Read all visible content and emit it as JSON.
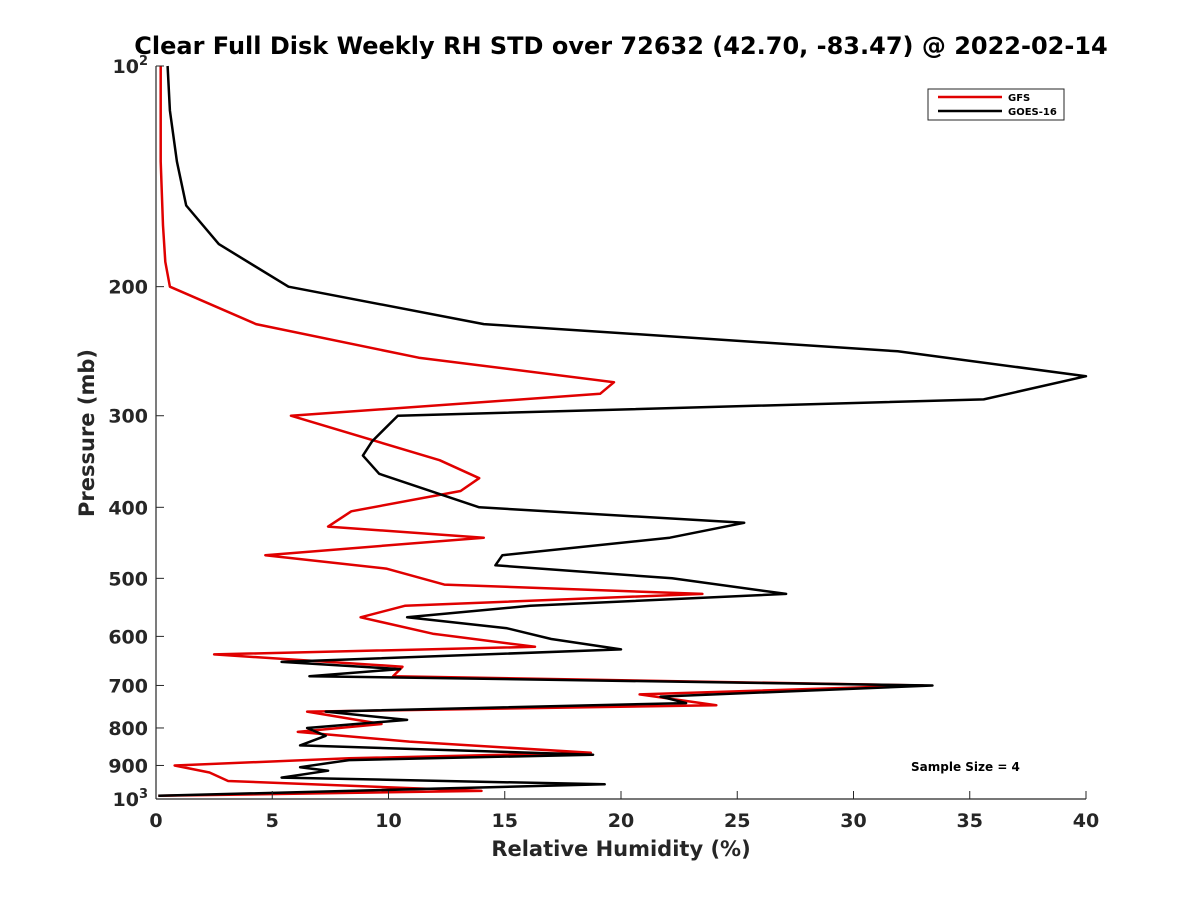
{
  "chart_data": {
    "type": "line",
    "title": "Clear Full Disk Weekly RH STD over 72632 (42.70, -83.47) @ 2022-02-14",
    "xlabel": "Relative Humidity (%)",
    "ylabel": "Pressure (mb)",
    "xlim": [
      0,
      40
    ],
    "ylim": [
      100,
      1000
    ],
    "y_scale": "log",
    "y_reversed": true,
    "grid": false,
    "legend_position": "top-right",
    "x_ticks": [
      0,
      5,
      10,
      15,
      20,
      25,
      30,
      35,
      40
    ],
    "x_tick_labels": [
      "0",
      "5",
      "10",
      "15",
      "20",
      "25",
      "30",
      "35",
      "40"
    ],
    "y_ticks": [
      100,
      200,
      300,
      400,
      500,
      600,
      700,
      800,
      900,
      1000
    ],
    "y_tick_labels": [
      {
        "base": "10",
        "exp": "2"
      },
      {
        "base": "200",
        "exp": ""
      },
      {
        "base": "300",
        "exp": ""
      },
      {
        "base": "400",
        "exp": ""
      },
      {
        "base": "500",
        "exp": ""
      },
      {
        "base": "600",
        "exp": ""
      },
      {
        "base": "700",
        "exp": ""
      },
      {
        "base": "800",
        "exp": ""
      },
      {
        "base": "900",
        "exp": ""
      },
      {
        "base": "10",
        "exp": "3"
      }
    ],
    "annotation": "Sample Size = 4",
    "series": [
      {
        "name": "GFS",
        "color": "#e00000",
        "points": [
          [
            0.2,
            100
          ],
          [
            0.2,
            115
          ],
          [
            0.2,
            135
          ],
          [
            0.3,
            165
          ],
          [
            0.4,
            185
          ],
          [
            0.6,
            200
          ],
          [
            4.3,
            225
          ],
          [
            11.3,
            250
          ],
          [
            19.7,
            270
          ],
          [
            19.1,
            280
          ],
          [
            5.8,
            300
          ],
          [
            12.2,
            345
          ],
          [
            13.9,
            365
          ],
          [
            13.1,
            380
          ],
          [
            8.4,
            405
          ],
          [
            7.4,
            425
          ],
          [
            14.1,
            440
          ],
          [
            4.7,
            465
          ],
          [
            9.9,
            485
          ],
          [
            12.4,
            510
          ],
          [
            23.5,
            525
          ],
          [
            10.7,
            545
          ],
          [
            8.8,
            565
          ],
          [
            11.9,
            595
          ],
          [
            16.3,
            620
          ],
          [
            2.5,
            635
          ],
          [
            10.6,
            660
          ],
          [
            10.2,
            680
          ],
          [
            33.0,
            700
          ],
          [
            20.8,
            720
          ],
          [
            24.1,
            745
          ],
          [
            6.5,
            760
          ],
          [
            9.7,
            790
          ],
          [
            6.1,
            810
          ],
          [
            10.9,
            835
          ],
          [
            18.7,
            865
          ],
          [
            8.3,
            880
          ],
          [
            0.8,
            900
          ],
          [
            2.3,
            920
          ],
          [
            3.1,
            945
          ],
          [
            14.0,
            975
          ],
          [
            0.1,
            990
          ]
        ]
      },
      {
        "name": "GOES-16",
        "color": "#000000",
        "points": [
          [
            0.5,
            100
          ],
          [
            0.6,
            115
          ],
          [
            0.9,
            135
          ],
          [
            1.3,
            155
          ],
          [
            2.7,
            175
          ],
          [
            5.7,
            200
          ],
          [
            14.1,
            225
          ],
          [
            31.9,
            245
          ],
          [
            40.0,
            265
          ],
          [
            35.6,
            285
          ],
          [
            10.4,
            300
          ],
          [
            9.3,
            325
          ],
          [
            8.9,
            340
          ],
          [
            9.6,
            360
          ],
          [
            13.9,
            400
          ],
          [
            25.3,
            420
          ],
          [
            22.1,
            440
          ],
          [
            14.9,
            465
          ],
          [
            14.6,
            480
          ],
          [
            22.2,
            500
          ],
          [
            27.1,
            525
          ],
          [
            16.1,
            545
          ],
          [
            10.8,
            565
          ],
          [
            15.1,
            585
          ],
          [
            17.0,
            605
          ],
          [
            20.0,
            625
          ],
          [
            5.4,
            650
          ],
          [
            10.5,
            665
          ],
          [
            6.6,
            680
          ],
          [
            33.4,
            700
          ],
          [
            21.7,
            725
          ],
          [
            22.8,
            740
          ],
          [
            7.3,
            760
          ],
          [
            10.8,
            780
          ],
          [
            6.5,
            800
          ],
          [
            7.3,
            820
          ],
          [
            6.2,
            845
          ],
          [
            18.8,
            870
          ],
          [
            8.3,
            885
          ],
          [
            6.2,
            905
          ],
          [
            7.4,
            915
          ],
          [
            5.4,
            935
          ],
          [
            19.3,
            955
          ],
          [
            0.1,
            990
          ]
        ]
      }
    ]
  }
}
